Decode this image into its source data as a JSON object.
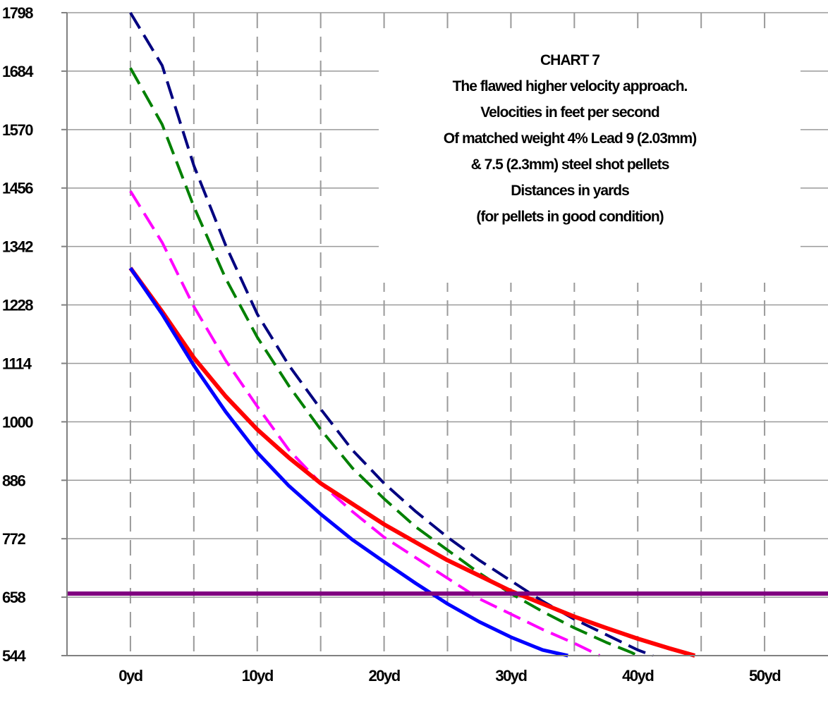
{
  "chart_data": {
    "type": "line",
    "title_lines": [
      "CHART 7",
      "The flawed higher velocity approach.",
      "Velocities in feet per second",
      "Of matched weight 4% Lead 9 (2.03mm)",
      "& 7.5 (2.3mm) steel shot pellets",
      "Distances in yards",
      "(for pellets in good condition)"
    ],
    "xlim": [
      -5,
      55
    ],
    "ylim": [
      544,
      1798
    ],
    "x_ticks": [
      0,
      10,
      20,
      30,
      40,
      50
    ],
    "x_tick_labels": [
      "0yd",
      "10yd",
      "20yd",
      "30yd",
      "40yd",
      "50yd"
    ],
    "y_ticks": [
      544,
      658,
      772,
      886,
      1000,
      1114,
      1228,
      1342,
      1456,
      1570,
      1684,
      1798
    ],
    "y_tick_labels": [
      "544",
      "658",
      "772",
      "886",
      "1000",
      "1114",
      "1228",
      "1342",
      "1456",
      "1570",
      "1684",
      "1798"
    ],
    "vertical_grid": [
      0,
      5,
      10,
      15,
      20,
      25,
      30,
      35,
      40,
      45,
      50
    ],
    "grid": true,
    "legend": "none",
    "series": [
      {
        "color": "#000080",
        "style": "dashed",
        "width": 4,
        "points": [
          [
            0,
            1798
          ],
          [
            2.5,
            1695
          ],
          [
            5,
            1500
          ],
          [
            7.5,
            1345
          ],
          [
            10,
            1210
          ],
          [
            12.5,
            1110
          ],
          [
            15,
            1025
          ],
          [
            17.5,
            945
          ],
          [
            20,
            880
          ],
          [
            22.5,
            825
          ],
          [
            25,
            775
          ],
          [
            27.5,
            730
          ],
          [
            30,
            690
          ],
          [
            32.5,
            650
          ],
          [
            35,
            615
          ],
          [
            37.5,
            585
          ],
          [
            40,
            555
          ],
          [
            41.2,
            544
          ]
        ]
      },
      {
        "color": "#008000",
        "style": "dashed",
        "width": 4,
        "points": [
          [
            0,
            1690
          ],
          [
            2.5,
            1580
          ],
          [
            5,
            1420
          ],
          [
            7.5,
            1280
          ],
          [
            10,
            1165
          ],
          [
            12.5,
            1070
          ],
          [
            15,
            985
          ],
          [
            17.5,
            910
          ],
          [
            20,
            850
          ],
          [
            22.5,
            795
          ],
          [
            25,
            750
          ],
          [
            27.5,
            705
          ],
          [
            30,
            665
          ],
          [
            32.5,
            630
          ],
          [
            35,
            598
          ],
          [
            37.5,
            570
          ],
          [
            39.5,
            550
          ],
          [
            40,
            544
          ]
        ]
      },
      {
        "color": "#ff00ff",
        "style": "dashed",
        "width": 4,
        "points": [
          [
            0,
            1450
          ],
          [
            2.5,
            1350
          ],
          [
            5,
            1225
          ],
          [
            7.5,
            1120
          ],
          [
            10,
            1030
          ],
          [
            12.5,
            945
          ],
          [
            15,
            880
          ],
          [
            17.5,
            825
          ],
          [
            20,
            775
          ],
          [
            22.5,
            735
          ],
          [
            25,
            695
          ],
          [
            27.5,
            655
          ],
          [
            30,
            625
          ],
          [
            32.5,
            595
          ],
          [
            35,
            568
          ],
          [
            36.5,
            550
          ],
          [
            37,
            544
          ]
        ]
      },
      {
        "color": "#ff0000",
        "style": "solid",
        "width": 6,
        "points": [
          [
            0,
            1300
          ],
          [
            2.5,
            1215
          ],
          [
            5,
            1125
          ],
          [
            7.5,
            1050
          ],
          [
            10,
            985
          ],
          [
            12.5,
            930
          ],
          [
            15,
            880
          ],
          [
            17.5,
            840
          ],
          [
            20,
            800
          ],
          [
            22.5,
            765
          ],
          [
            25,
            730
          ],
          [
            27.5,
            700
          ],
          [
            30,
            670
          ],
          [
            32.5,
            645
          ],
          [
            35,
            620
          ],
          [
            37.5,
            598
          ],
          [
            40,
            577
          ],
          [
            42.5,
            558
          ],
          [
            44.5,
            544
          ]
        ]
      },
      {
        "color": "#0000ff",
        "style": "solid",
        "width": 5,
        "points": [
          [
            0,
            1300
          ],
          [
            2.5,
            1210
          ],
          [
            5,
            1110
          ],
          [
            7.5,
            1020
          ],
          [
            10,
            940
          ],
          [
            12.5,
            875
          ],
          [
            15,
            820
          ],
          [
            17.5,
            770
          ],
          [
            20,
            727
          ],
          [
            22.5,
            685
          ],
          [
            25,
            645
          ],
          [
            27.5,
            610
          ],
          [
            30,
            580
          ],
          [
            32.5,
            555
          ],
          [
            34.5,
            544
          ]
        ]
      },
      {
        "color": "#800080",
        "style": "solid",
        "width": 6,
        "points": [
          [
            -5,
            665
          ],
          [
            55,
            665
          ]
        ]
      }
    ]
  }
}
